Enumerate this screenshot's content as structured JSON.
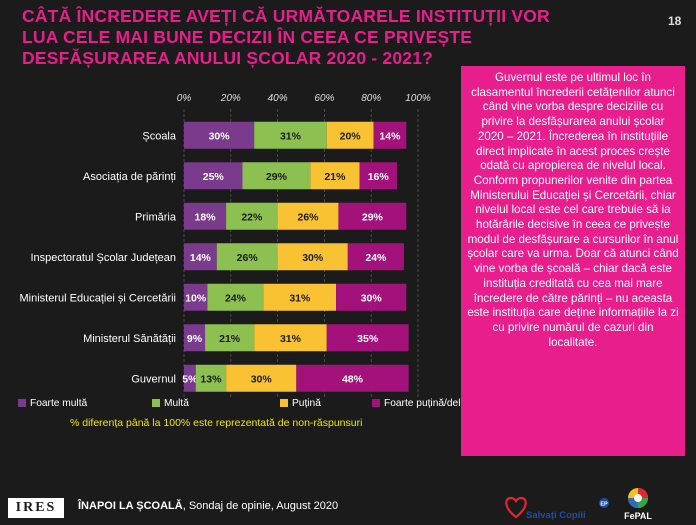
{
  "page": {
    "title": "CÂTĂ ÎNCREDERE AVEȚI CĂ URMĂTOARELE INSTITUȚII VOR LUA CELE MAI BUNE DECIZII ÎN CEEA CE PRIVEȘTE DESFĂȘURAREA ANULUI ȘCOLAR 2020 - 2021?",
    "page_number": "18"
  },
  "side_panel": {
    "paragraph1": "Guvernul este pe ultimul loc în clasamentul încrederii cetățenilor atunci când vine vorba despre deciziile cu privire la desfășurarea anului școlar 2020 – 2021. Încrederea în instituțiile direct implicate în acest proces crește odată cu apropierea de nivelul local.",
    "paragraph2": "Conform propunerilor venite din partea Ministerului Educației și Cercetării, chiar nivelul local este cel care trebuie să ia hotărârile decisive în ceea ce privește modul de desfășurare a cursurilor în anul școlar care va urma. Doar că atunci când vine vorba de școală – chiar dacă este instituția creditată cu cea mai mare încredere de către părinți – nu aceasta este instituția care deține informațiile la zi cu privire numărul de cazuri din localitate."
  },
  "note": "% diferența până la 100% este reprezentată de non-răspunsuri",
  "footer": {
    "logo_text": "IRES",
    "title_bold": "ÎNAPOI LA ȘCOALĂ",
    "title_rest": ", Sondaj de opinie, August 2020",
    "partner1": "Salvați Copiii",
    "partner1_badge": "EP",
    "partner2": "FePAL"
  },
  "colors": {
    "foarte_multa": "#7a3b8c",
    "multa": "#8cc152",
    "putina": "#f9c232",
    "foarte_putina": "#a3117a",
    "title": "#e81e8c",
    "panel": "#e81e8c",
    "note": "#f2e600"
  },
  "chart_data": {
    "type": "bar",
    "orientation": "horizontal",
    "stacked": true,
    "xlim": [
      0,
      100
    ],
    "x_ticks": [
      "0%",
      "20%",
      "40%",
      "60%",
      "80%",
      "100%"
    ],
    "categories": [
      "Școala",
      "Asociația de părinți",
      "Primăria",
      "Inspectoratul Școlar Județean",
      "Ministerul Educației și Cercetării",
      "Ministerul Sănătății",
      "Guvernul"
    ],
    "series": [
      {
        "name": "Foarte multă",
        "color": "#7a3b8c",
        "values": [
          30,
          25,
          18,
          14,
          10,
          9,
          5
        ],
        "labels": [
          "30%",
          "25%",
          "18%",
          "14%",
          "10%",
          "9%",
          "5%"
        ]
      },
      {
        "name": "Multă",
        "color": "#8cc152",
        "values": [
          31,
          29,
          22,
          26,
          24,
          21,
          13
        ],
        "labels": [
          "31%",
          "29%",
          "22%",
          "26%",
          "24%",
          "21%",
          "13%"
        ]
      },
      {
        "name": "Puțină",
        "color": "#f9c232",
        "values": [
          20,
          21,
          26,
          30,
          31,
          31,
          30
        ],
        "labels": [
          "20%",
          "21%",
          "26%",
          "30%",
          "31%",
          "31%",
          "30%"
        ]
      },
      {
        "name": "Foarte puțină/deloc",
        "color": "#a3117a",
        "values": [
          14,
          16,
          29,
          24,
          30,
          35,
          48
        ],
        "labels": [
          "14%",
          "16%",
          "29%",
          "24%",
          "30%",
          "35%",
          "48%"
        ]
      }
    ],
    "legend_position": "bottom",
    "grid": true
  }
}
